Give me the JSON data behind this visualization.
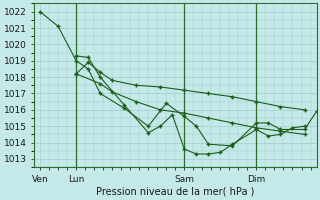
{
  "background_color": "#c5e8e8",
  "grid_color": "#a0cccc",
  "line_color": "#1a5c1a",
  "marker_color": "#1a5c1a",
  "xlabel": "Pression niveau de la mer( hPa )",
  "ylim": [
    1012.5,
    1022.5
  ],
  "yticks": [
    1013,
    1014,
    1015,
    1016,
    1017,
    1018,
    1019,
    1020,
    1021,
    1022
  ],
  "xtick_labels": [
    "Ven",
    "Lun",
    "Sam",
    "Dim"
  ],
  "xtick_positions": [
    0.0,
    3.0,
    12.0,
    18.0
  ],
  "xvlines": [
    3.0,
    12.0,
    18.0
  ],
  "xlim": [
    -0.5,
    23.0
  ],
  "figsize": [
    3.2,
    2.0
  ],
  "dpi": 100,
  "series": [
    {
      "x": [
        0.0,
        1.5,
        3.0,
        4.0,
        5.0,
        7.0,
        9.0,
        10.5,
        12.0,
        13.0,
        14.0,
        16.0,
        18.0,
        19.0,
        20.0,
        22.0,
        23.0
      ],
      "y": [
        1022.0,
        1021.1,
        1019.0,
        1018.5,
        1017.0,
        1016.1,
        1015.0,
        1016.4,
        1015.6,
        1015.0,
        1013.9,
        1013.8,
        1015.2,
        1015.2,
        1014.8,
        1014.8,
        1015.9
      ]
    },
    {
      "x": [
        3.0,
        4.0,
        5.0,
        7.0,
        9.0,
        10.0,
        11.0,
        12.0,
        13.0,
        14.0,
        15.0,
        16.0,
        18.0,
        19.0,
        20.0,
        21.0,
        22.0
      ],
      "y": [
        1019.3,
        1019.2,
        1018.0,
        1016.3,
        1014.6,
        1015.0,
        1015.7,
        1013.6,
        1013.3,
        1013.3,
        1013.4,
        1013.9,
        1014.8,
        1014.4,
        1014.5,
        1014.9,
        1015.0
      ]
    },
    {
      "x": [
        3.0,
        4.0,
        5.0,
        6.0,
        8.0,
        10.0,
        12.0,
        14.0,
        16.0,
        18.0,
        20.0,
        22.0
      ],
      "y": [
        1018.2,
        1018.9,
        1018.3,
        1017.8,
        1017.5,
        1017.4,
        1017.2,
        1017.0,
        1016.8,
        1016.5,
        1016.2,
        1016.0
      ]
    },
    {
      "x": [
        3.0,
        5.0,
        6.0,
        8.0,
        10.0,
        12.0,
        14.0,
        16.0,
        18.0,
        20.0,
        22.0
      ],
      "y": [
        1018.2,
        1017.6,
        1017.1,
        1016.5,
        1016.0,
        1015.8,
        1015.5,
        1015.2,
        1014.9,
        1014.7,
        1014.5
      ]
    }
  ]
}
